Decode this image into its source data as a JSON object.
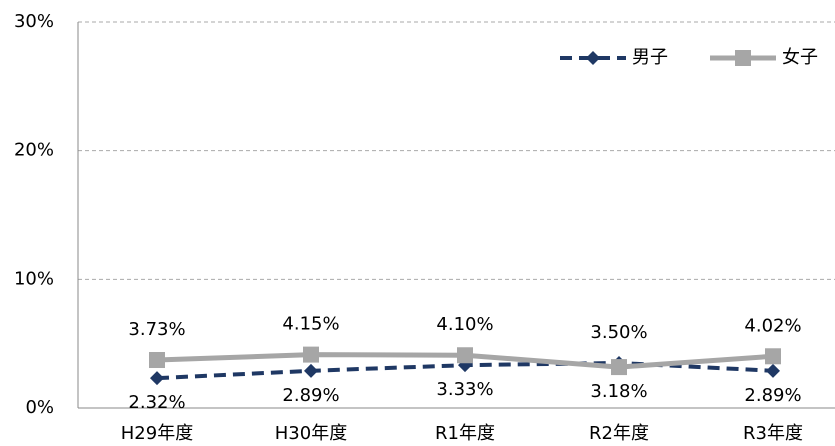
{
  "chart_data": {
    "type": "line",
    "categories": [
      "H29年度",
      "H30年度",
      "R1年度",
      "R2年度",
      "R3年度"
    ],
    "series": [
      {
        "name": "男子",
        "color": "#1f3864",
        "marker": "diamond",
        "dash": true,
        "values": [
          2.32,
          2.89,
          3.33,
          3.5,
          2.89
        ],
        "value_labels": [
          "2.32%",
          "2.89%",
          "3.33%",
          "3.50%",
          "2.89%"
        ]
      },
      {
        "name": "女子",
        "color": "#a6a6a6",
        "marker": "square",
        "dash": false,
        "values": [
          3.73,
          4.15,
          4.1,
          3.18,
          4.02
        ],
        "value_labels": [
          "3.73%",
          "4.15%",
          "4.10%",
          "3.18%",
          "4.02%"
        ]
      }
    ],
    "ylim": [
      0,
      30
    ],
    "yticks": [
      {
        "value": 0,
        "label": "0%"
      },
      {
        "value": 10,
        "label": "10%"
      },
      {
        "value": 20,
        "label": "20%"
      },
      {
        "value": 30,
        "label": "30%"
      }
    ],
    "grid": true,
    "legend": "top-right"
  }
}
